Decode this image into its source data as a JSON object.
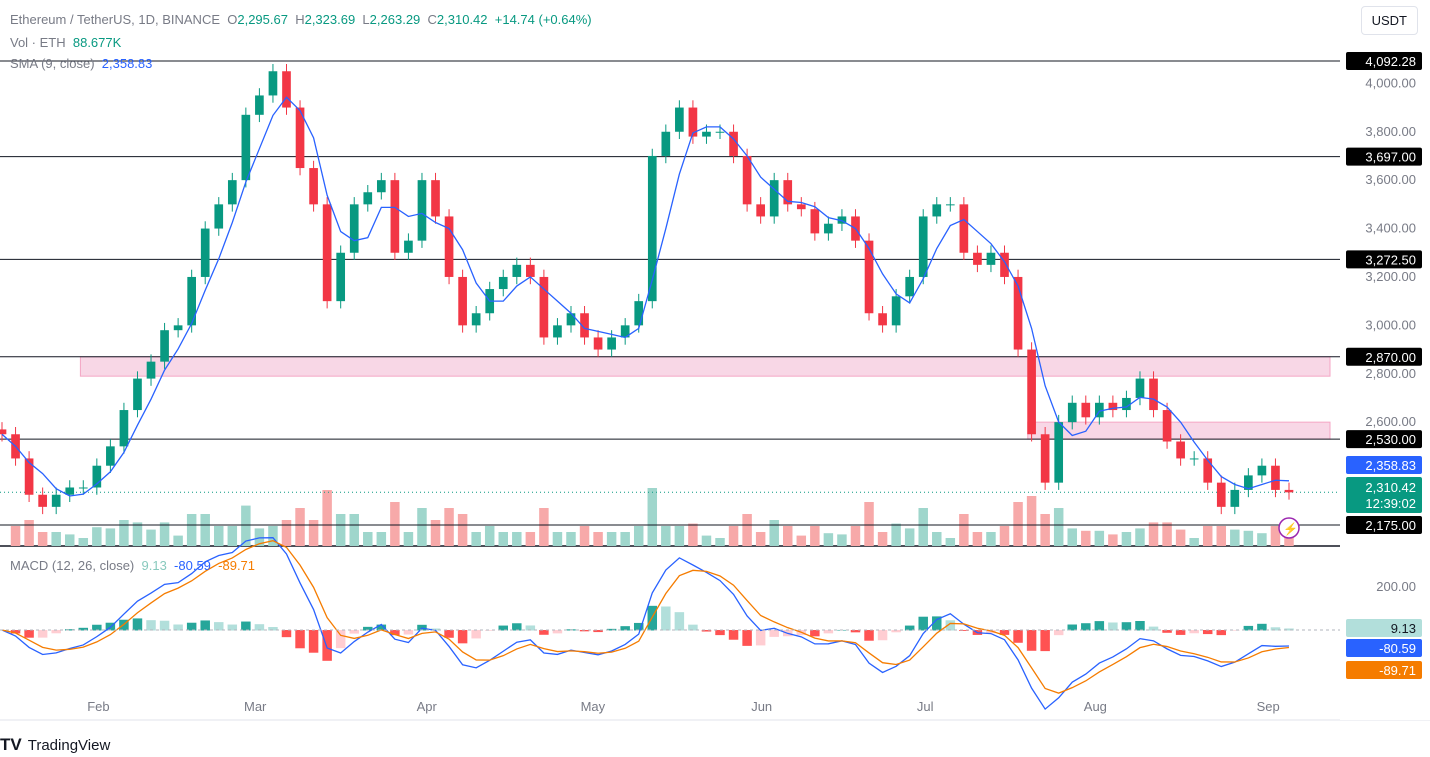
{
  "header": {
    "symbol": "Ethereum / TetherUS, 1D, BINANCE",
    "o": "2,295.67",
    "h": "2,323.69",
    "l": "2,263.29",
    "c": "2,310.42",
    "change": "+14.74 (+0.64%)",
    "vol_label": "Vol · ETH",
    "vol": "88.677K",
    "sma_label": "SMA (9, close)",
    "sma": "2,358.83",
    "currency": "USDT"
  },
  "macd_legend": {
    "label": "MACD (12, 26, close)",
    "hist": "9.13",
    "macd": "-80.59",
    "signal": "-89.71"
  },
  "footer": {
    "brand": "TradingView"
  },
  "countdown": "12:39:02",
  "colors": {
    "up": "#089981",
    "down": "#f23645",
    "sma": "#2962ff",
    "signal": "#f57c00",
    "zone": "#f8d7e6"
  },
  "chart_data": {
    "type": "candlestick",
    "x_start": "Jan 17",
    "x_end": "Sep 16",
    "month_ticks": [
      {
        "label": "Feb",
        "pos": 0.06
      },
      {
        "label": "Mar",
        "pos": 0.177
      },
      {
        "label": "Apr",
        "pos": 0.305
      },
      {
        "label": "May",
        "pos": 0.429
      },
      {
        "label": "Jun",
        "pos": 0.555
      },
      {
        "label": "Jul",
        "pos": 0.677
      },
      {
        "label": "Aug",
        "pos": 0.804
      },
      {
        "label": "Sep",
        "pos": 0.933
      }
    ],
    "closes": [
      2550,
      2450,
      2300,
      2250,
      2300,
      2330,
      2330,
      2420,
      2500,
      2650,
      2780,
      2850,
      2980,
      3000,
      3200,
      3400,
      3500,
      3600,
      3870,
      3950,
      4050,
      3900,
      3650,
      3500,
      3100,
      3300,
      3500,
      3550,
      3600,
      3300,
      3350,
      3600,
      3450,
      3200,
      3000,
      3050,
      3150,
      3200,
      3250,
      3200,
      2950,
      3000,
      3050,
      2950,
      2900,
      2950,
      3000,
      3100,
      3700,
      3800,
      3900,
      3780,
      3800,
      3800,
      3700,
      3500,
      3450,
      3600,
      3500,
      3480,
      3380,
      3420,
      3450,
      3350,
      3050,
      3000,
      3120,
      3200,
      3450,
      3500,
      3500,
      3300,
      3250,
      3300,
      3200,
      2900,
      2550,
      2350,
      2600,
      2680,
      2620,
      2680,
      2650,
      2700,
      2780,
      2650,
      2520,
      2450,
      2450,
      2350,
      2250,
      2320,
      2380,
      2420,
      2320,
      2310
    ],
    "y_ticks": [
      4000,
      3800,
      3600,
      3400,
      3200,
      3000,
      2800,
      2600
    ],
    "levels": [
      "4,092.28",
      "3,697.00",
      "3,272.50",
      "2,870.00",
      "2,530.00",
      "2,175.00"
    ],
    "level_values": [
      4092.28,
      3697,
      3272.5,
      2870,
      2530,
      2175
    ],
    "zones": [
      {
        "from": 2790,
        "to": 2870,
        "start": 0.06
      },
      {
        "from": 2530,
        "to": 2600,
        "start": 0.767
      }
    ],
    "current_price": "2,310.42",
    "current_value": 2310.42,
    "sma_value": "2,358.83",
    "macd_ticks": [
      "200.00"
    ],
    "macd_labels": {
      "hist": "9.13",
      "macd": "-80.59",
      "signal": "-89.71"
    }
  }
}
